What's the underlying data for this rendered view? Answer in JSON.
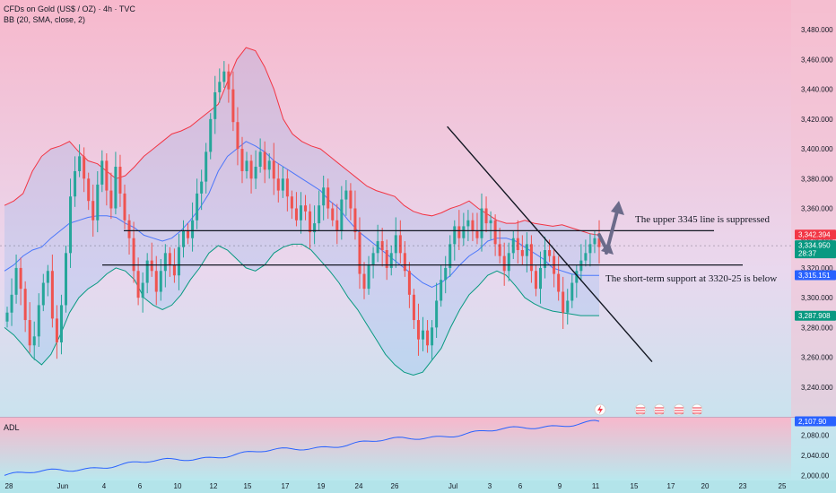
{
  "header": {
    "symbol_line": "CFDs on Gold (US$ / OZ) · 4h · TVC",
    "indicator_line": "BB (20, SMA, close, 2)"
  },
  "annotations": {
    "upper": "The upper 3345 line is suppressed",
    "lower": "The short-term support at 3320-25 is below"
  },
  "lower_pane": {
    "label": "ADL"
  },
  "colors": {
    "up_candle": "#26a69a",
    "down_candle": "#ef5350",
    "upper_band": "#f23645",
    "basis": "#2962ff",
    "lower_band": "#089981",
    "band_fill": "#2196f3",
    "tag_red": "#f23645",
    "tag_green": "#089981",
    "tag_dark": "#131722",
    "tag_blue": "#2962ff",
    "arrow": "#6b6b8a"
  },
  "chart_data": {
    "type": "candlestick",
    "title": "CFDs on Gold (US$ / OZ) · 4h · TVC",
    "price_ylim": [
      3220,
      3500
    ],
    "price_ticks": [
      "3,240.000",
      "3,260.000",
      "3,280.000",
      "3,300.000",
      "3,320.000",
      "3,340.000",
      "3,360.000",
      "3,380.000",
      "3,400.000",
      "3,420.000",
      "3,440.000",
      "3,460.000",
      "3,480.000"
    ],
    "price_tick_values": [
      3240,
      3260,
      3280,
      3300,
      3320,
      3340,
      3360,
      3380,
      3400,
      3420,
      3440,
      3460,
      3480
    ],
    "date_labels": [
      "28",
      "Jun",
      "4",
      "6",
      "10",
      "12",
      "15",
      "17",
      "19",
      "24",
      "26",
      "Jul",
      "3",
      "6",
      "9",
      "11",
      "15",
      "17",
      "20",
      "23",
      "25"
    ],
    "price_tags": [
      {
        "label": "3,342.394",
        "value": 3342.394,
        "color": "tag_red"
      },
      {
        "label": "3,334.950",
        "value": 3334.95,
        "color": "tag_green",
        "sub": "28:37"
      },
      {
        "label": "3,315.151",
        "value": 3315.151,
        "color": "tag_blue"
      },
      {
        "label": "3,287.908",
        "value": 3287.908,
        "color": "tag_green"
      }
    ],
    "horizontal_lines": [
      3345,
      3322
    ],
    "trendline": {
      "from": [
        0.535,
        3415
      ],
      "to": [
        0.78,
        3257
      ]
    },
    "ohlc_close": [
      3290,
      3302,
      3320,
      3306,
      3285,
      3268,
      3274,
      3295,
      3310,
      3318,
      3286,
      3270,
      3295,
      3330,
      3368,
      3385,
      3395,
      3380,
      3365,
      3352,
      3376,
      3392,
      3372,
      3360,
      3388,
      3370,
      3352,
      3340,
      3318,
      3300,
      3310,
      3325,
      3318,
      3304,
      3318,
      3330,
      3322,
      3315,
      3334,
      3345,
      3340,
      3352,
      3370,
      3378,
      3398,
      3420,
      3438,
      3445,
      3452,
      3440,
      3418,
      3400,
      3385,
      3392,
      3380,
      3388,
      3398,
      3386,
      3392,
      3380,
      3372,
      3380,
      3368,
      3360,
      3352,
      3362,
      3358,
      3344,
      3350,
      3362,
      3374,
      3360,
      3352,
      3345,
      3366,
      3372,
      3360,
      3344,
      3316,
      3306,
      3322,
      3330,
      3338,
      3332,
      3320,
      3330,
      3342,
      3330,
      3318,
      3302,
      3285,
      3272,
      3278,
      3268,
      3280,
      3298,
      3312,
      3320,
      3336,
      3348,
      3340,
      3348,
      3352,
      3345,
      3340,
      3360,
      3350,
      3352,
      3336,
      3328,
      3318,
      3330,
      3340,
      3332,
      3328,
      3336,
      3318,
      3306,
      3320,
      3332,
      3328,
      3316,
      3304,
      3290,
      3298,
      3310,
      3318,
      3325,
      3330,
      3336,
      3340,
      3334
    ],
    "upper_band_values": [
      3362,
      3365,
      3370,
      3385,
      3395,
      3400,
      3402,
      3405,
      3398,
      3392,
      3390,
      3385,
      3380,
      3382,
      3388,
      3395,
      3400,
      3405,
      3410,
      3412,
      3415,
      3420,
      3425,
      3430,
      3445,
      3460,
      3468,
      3466,
      3455,
      3440,
      3420,
      3410,
      3405,
      3402,
      3400,
      3395,
      3390,
      3385,
      3380,
      3375,
      3372,
      3370,
      3368,
      3362,
      3358,
      3356,
      3355,
      3357,
      3360,
      3362,
      3365,
      3360,
      3356,
      3352,
      3350,
      3350,
      3352,
      3350,
      3349,
      3348,
      3349,
      3347,
      3345,
      3343,
      3342
    ],
    "basis_values": [
      3318,
      3322,
      3328,
      3332,
      3334,
      3340,
      3345,
      3350,
      3352,
      3354,
      3355,
      3355,
      3354,
      3350,
      3347,
      3342,
      3340,
      3338,
      3340,
      3345,
      3352,
      3360,
      3370,
      3385,
      3395,
      3400,
      3405,
      3402,
      3398,
      3392,
      3388,
      3384,
      3380,
      3376,
      3372,
      3365,
      3360,
      3352,
      3345,
      3340,
      3335,
      3330,
      3325,
      3320,
      3315,
      3310,
      3307,
      3310,
      3315,
      3322,
      3328,
      3332,
      3338,
      3340,
      3340,
      3338,
      3334,
      3330,
      3326,
      3320,
      3318,
      3316,
      3315,
      3315,
      3315
    ],
    "lower_band_values": [
      3280,
      3275,
      3268,
      3260,
      3255,
      3262,
      3275,
      3290,
      3300,
      3306,
      3310,
      3316,
      3320,
      3318,
      3312,
      3300,
      3295,
      3292,
      3295,
      3302,
      3312,
      3320,
      3330,
      3335,
      3332,
      3326,
      3320,
      3318,
      3322,
      3330,
      3334,
      3336,
      3336,
      3332,
      3325,
      3318,
      3310,
      3300,
      3292,
      3282,
      3272,
      3262,
      3255,
      3250,
      3248,
      3250,
      3258,
      3266,
      3280,
      3292,
      3302,
      3308,
      3315,
      3318,
      3315,
      3308,
      3300,
      3296,
      3293,
      3291,
      3290,
      3289,
      3288,
      3288,
      3288
    ],
    "adl": {
      "label": "ADL",
      "ylim": [
        1990,
        2115
      ],
      "ticks": [
        "2,000.00",
        "2,040.00",
        "2,080.00"
      ],
      "tick_values": [
        2000,
        2040,
        2080
      ],
      "last_tag": "2,107.90",
      "last_value": 2107.9
    }
  }
}
